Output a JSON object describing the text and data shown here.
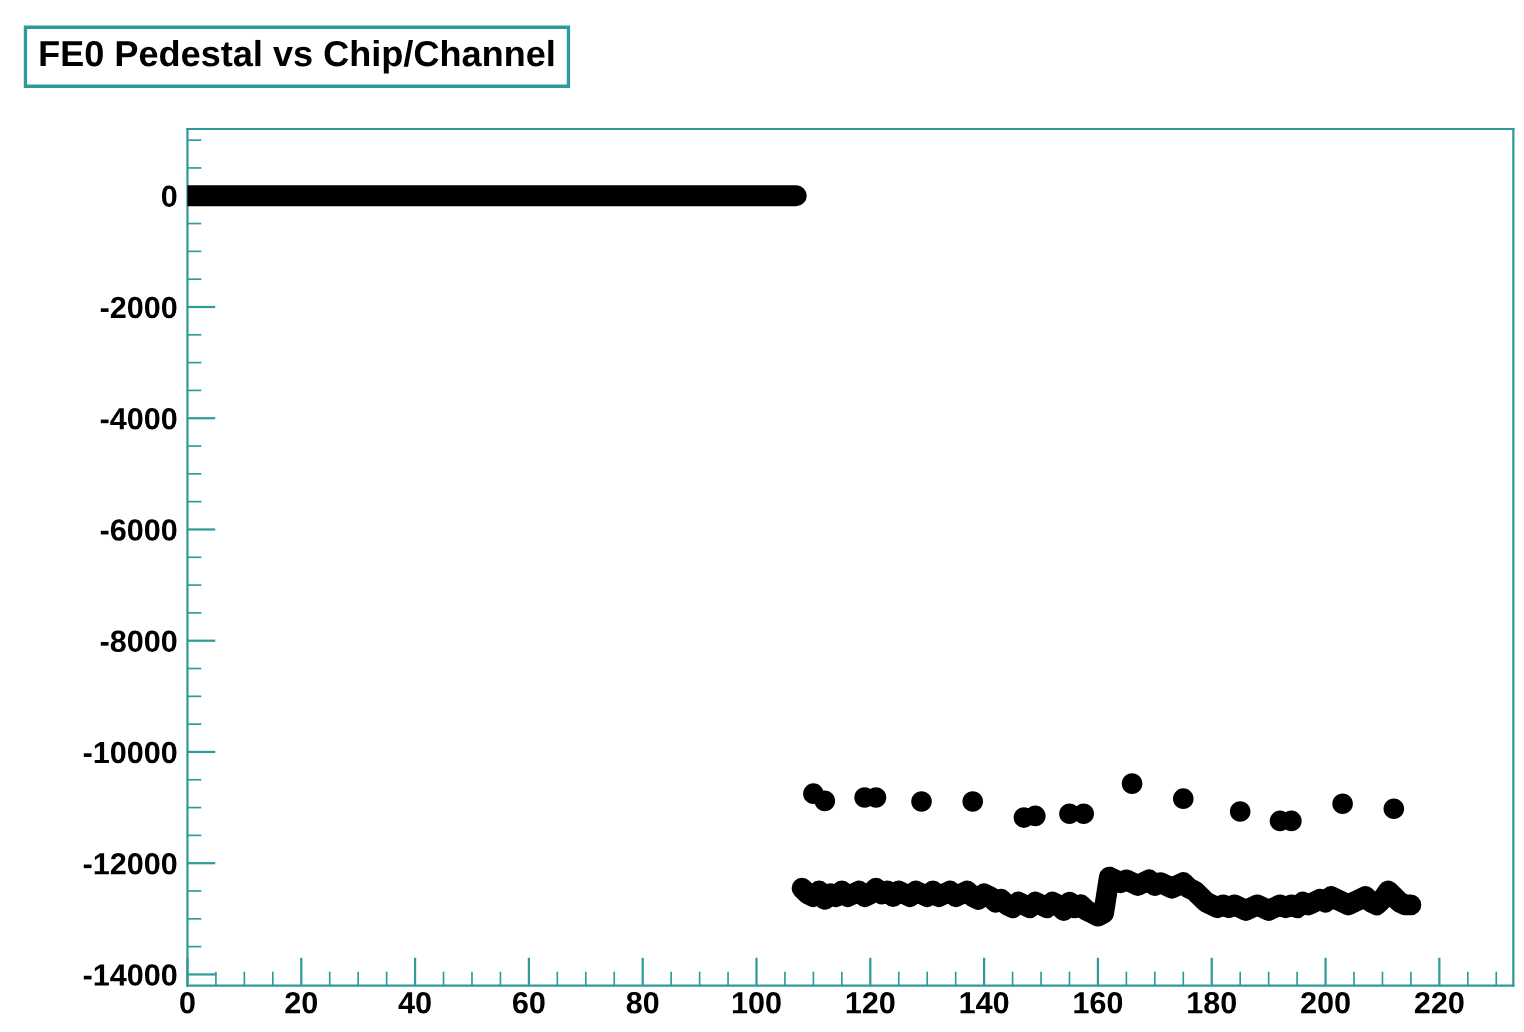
{
  "chart_data": {
    "type": "scatter",
    "title": "FE0 Pedestal vs Chip/Channel",
    "marker": "circle",
    "grid": false,
    "legend": false,
    "xlim": [
      0,
      233
    ],
    "ylim": [
      -14200,
      1200
    ],
    "xticks": [
      0,
      20,
      40,
      60,
      80,
      100,
      120,
      140,
      160,
      180,
      200,
      220
    ],
    "yticks": [
      -14000,
      -12000,
      -10000,
      -8000,
      -6000,
      -4000,
      -2000,
      0
    ],
    "series": [
      {
        "type": "line",
        "marker": "none",
        "color": "#000000",
        "x": [
          0,
          1,
          2,
          3,
          4,
          5,
          6,
          7,
          8,
          9,
          10,
          11,
          12,
          13,
          14,
          15,
          16,
          17,
          18,
          19,
          20,
          21,
          22,
          23,
          24,
          25,
          26,
          27,
          28,
          29,
          30,
          31,
          32,
          33,
          34,
          35,
          36,
          37,
          38,
          39,
          40,
          41,
          42,
          43,
          44,
          45,
          46,
          47,
          48,
          49,
          50,
          51,
          52,
          53,
          54,
          55,
          56,
          57,
          58,
          59,
          60,
          61,
          62,
          63,
          64,
          65,
          66,
          67,
          68,
          69,
          70,
          71,
          72,
          73,
          74,
          75,
          76,
          77,
          78,
          79,
          80,
          81,
          82,
          83,
          84,
          85,
          86,
          87,
          88,
          89,
          90,
          91,
          92,
          93,
          94,
          95,
          96,
          97,
          98,
          99,
          100,
          101,
          102,
          103,
          104,
          105,
          106,
          107
        ],
        "values": [
          0,
          0,
          0,
          0,
          0,
          0,
          0,
          0,
          0,
          0,
          0,
          0,
          0,
          0,
          0,
          0,
          0,
          0,
          0,
          0,
          0,
          0,
          0,
          0,
          0,
          0,
          0,
          0,
          0,
          0,
          0,
          0,
          0,
          0,
          0,
          0,
          0,
          0,
          0,
          0,
          0,
          0,
          0,
          0,
          0,
          0,
          0,
          0,
          0,
          0,
          0,
          0,
          0,
          0,
          0,
          0,
          0,
          0,
          0,
          0,
          0,
          0,
          0,
          0,
          0,
          0,
          0,
          0,
          0,
          0,
          0,
          0,
          0,
          0,
          0,
          0,
          0,
          0,
          0,
          0,
          0,
          0,
          0,
          0,
          0,
          0,
          0,
          0,
          0,
          0,
          0,
          0,
          0,
          0,
          0,
          0,
          0,
          0,
          0,
          0,
          0,
          0,
          0,
          0,
          0,
          0,
          0,
          0
        ]
      },
      {
        "color": "#000000",
        "x": [
          110,
          112,
          119,
          121,
          129,
          138,
          147,
          149,
          155,
          157.5,
          166,
          175,
          185,
          192,
          194,
          203,
          212
        ],
        "values": [
          -10750,
          -10880,
          -10820,
          -10820,
          -10890,
          -10890,
          -11180,
          -11150,
          -11110,
          -11110,
          -10570,
          -10840,
          -11070,
          -11240,
          -11240,
          -10930,
          -11020
        ]
      },
      {
        "type": "line",
        "marker": "none",
        "color": "#000000",
        "x": [
          108,
          109,
          110,
          111,
          112,
          113,
          114,
          115,
          116,
          117,
          118,
          119,
          120,
          121,
          122,
          123,
          124,
          125,
          126,
          127,
          128,
          129,
          130,
          131,
          132,
          133,
          134,
          135,
          136,
          137,
          138,
          139,
          140,
          141,
          142,
          143,
          144,
          145,
          146,
          147,
          148,
          149,
          150,
          151,
          152,
          153,
          154,
          155,
          156,
          157,
          158,
          159,
          160,
          161,
          162,
          163,
          164,
          165,
          166,
          167,
          168,
          169,
          170,
          171,
          172,
          173,
          174,
          175,
          176,
          177,
          178,
          179,
          180,
          181,
          182,
          183,
          184,
          185,
          186,
          187,
          188,
          189,
          190,
          191,
          192,
          193,
          194,
          195,
          196,
          197,
          198,
          199,
          200,
          201,
          202,
          203,
          204,
          205,
          206,
          207,
          208,
          209,
          210,
          211,
          212,
          213,
          214,
          215
        ],
        "values": [
          -12450,
          -12550,
          -12600,
          -12500,
          -12650,
          -12550,
          -12600,
          -12500,
          -12600,
          -12550,
          -12500,
          -12600,
          -12550,
          -12450,
          -12550,
          -12500,
          -12600,
          -12500,
          -12550,
          -12600,
          -12500,
          -12550,
          -12600,
          -12500,
          -12600,
          -12550,
          -12500,
          -12600,
          -12550,
          -12500,
          -12600,
          -12650,
          -12550,
          -12600,
          -12700,
          -12650,
          -12750,
          -12800,
          -12700,
          -12750,
          -12800,
          -12700,
          -12750,
          -12800,
          -12700,
          -12750,
          -12850,
          -12700,
          -12800,
          -12750,
          -12850,
          -12900,
          -12950,
          -12900,
          -12250,
          -12300,
          -12350,
          -12300,
          -12350,
          -12400,
          -12350,
          -12300,
          -12400,
          -12350,
          -12400,
          -12450,
          -12400,
          -12350,
          -12450,
          -12500,
          -12600,
          -12700,
          -12750,
          -12800,
          -12750,
          -12800,
          -12750,
          -12800,
          -12850,
          -12800,
          -12750,
          -12800,
          -12850,
          -12800,
          -12750,
          -12800,
          -12750,
          -12800,
          -12700,
          -12750,
          -12700,
          -12650,
          -12700,
          -12600,
          -12650,
          -12700,
          -12750,
          -12700,
          -12650,
          -12600,
          -12700,
          -12750,
          -12650,
          -12500,
          -12600,
          -12700,
          -12750,
          -12750
        ]
      }
    ]
  }
}
